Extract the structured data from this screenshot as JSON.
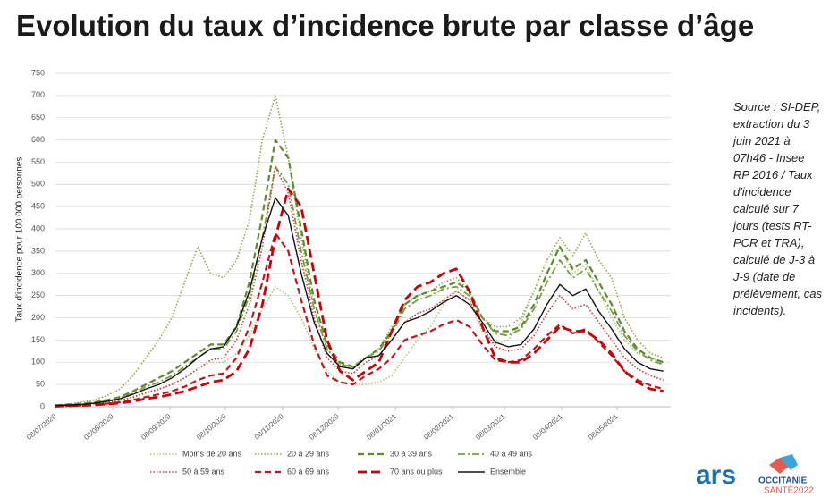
{
  "header": {
    "title": "Evolution du taux d’incidence brute par classe d’âge"
  },
  "note": "Source : SI-DEP, extraction du 3 juin 2021 à 07h46 - Insee RP 2016 / Taux d'incidence calculé sur 7 jours (tests RT-PCR et TRA), calculé de J-3 à J-9 (date de prélèvement, cas incidents).",
  "logos": {
    "ars": "ars",
    "region": "OCCITANIE",
    "plan": "SANTÉ2022"
  },
  "chart_data": {
    "type": "line",
    "y_label": "Taux d'incidence pour 100 000 personnes",
    "x": [
      "08/07/2020",
      "15/07/2020",
      "22/07/2020",
      "29/07/2020",
      "05/08/2020",
      "12/08/2020",
      "19/08/2020",
      "26/08/2020",
      "02/09/2020",
      "09/09/2020",
      "16/09/2020",
      "23/09/2020",
      "30/09/2020",
      "07/10/2020",
      "14/10/2020",
      "21/10/2020",
      "28/10/2020",
      "04/11/2020",
      "11/11/2020",
      "18/11/2020",
      "25/11/2020",
      "02/12/2020",
      "09/12/2020",
      "16/12/2020",
      "23/12/2020",
      "30/12/2020",
      "06/01/2021",
      "13/01/2021",
      "20/01/2021",
      "27/01/2021",
      "03/02/2021",
      "10/02/2021",
      "17/02/2021",
      "24/02/2021",
      "03/03/2021",
      "10/03/2021",
      "17/03/2021",
      "24/03/2021",
      "31/03/2021",
      "07/04/2021",
      "14/04/2021",
      "21/04/2021",
      "28/04/2021",
      "05/05/2021",
      "12/05/2021",
      "19/05/2021",
      "26/05/2021",
      "02/06/2021"
    ],
    "xlim": [
      "08/07/2020",
      "06/06/2021"
    ],
    "xticks": [
      "08/07/2020",
      "08/08/2020",
      "08/09/2020",
      "08/10/2020",
      "08/11/2020",
      "08/12/2020",
      "08/01/2021",
      "08/02/2021",
      "08/03/2021",
      "08/04/2021",
      "08/05/2021"
    ],
    "ylim": [
      0,
      750
    ],
    "yticks": [
      0,
      50,
      100,
      150,
      200,
      250,
      300,
      350,
      400,
      450,
      500,
      550,
      600,
      650,
      700,
      750
    ],
    "grid": true,
    "series": [
      {
        "name": "Moins de 20 ans",
        "color": "#a9c77a",
        "dash": "dotted",
        "width": 1.6,
        "values": [
          2,
          3,
          4,
          6,
          10,
          15,
          20,
          30,
          38,
          50,
          65,
          85,
          100,
          100,
          120,
          160,
          220,
          270,
          250,
          200,
          130,
          80,
          55,
          50,
          50,
          55,
          70,
          110,
          150,
          180,
          230,
          260,
          240,
          170,
          140,
          150,
          190,
          260,
          330,
          360,
          300,
          320,
          260,
          200,
          150,
          120,
          110,
          100
        ]
      },
      {
        "name": "20 à 29 ans",
        "color": "#8aa84a",
        "dash": "dotted",
        "width": 1.6,
        "values": [
          4,
          6,
          10,
          15,
          25,
          40,
          70,
          110,
          150,
          200,
          280,
          360,
          300,
          290,
          330,
          420,
          600,
          700,
          560,
          380,
          220,
          130,
          95,
          85,
          110,
          130,
          180,
          230,
          250,
          260,
          280,
          290,
          260,
          200,
          180,
          180,
          200,
          260,
          330,
          380,
          340,
          390,
          330,
          290,
          200,
          150,
          120,
          110
        ]
      },
      {
        "name": "30 à 39 ans",
        "color": "#5e8a2e",
        "dash": "dashed",
        "width": 2.2,
        "values": [
          3,
          5,
          7,
          10,
          15,
          22,
          35,
          50,
          65,
          80,
          100,
          120,
          140,
          140,
          180,
          280,
          430,
          600,
          560,
          400,
          240,
          140,
          100,
          90,
          110,
          130,
          170,
          230,
          250,
          260,
          270,
          280,
          260,
          200,
          170,
          170,
          180,
          230,
          300,
          360,
          310,
          330,
          280,
          230,
          170,
          130,
          110,
          100
        ]
      },
      {
        "name": "40 à 49 ans",
        "color": "#76a040",
        "dash": "dashdot",
        "width": 1.8,
        "values": [
          3,
          4,
          6,
          9,
          13,
          20,
          30,
          45,
          55,
          70,
          90,
          110,
          130,
          130,
          170,
          250,
          380,
          540,
          500,
          350,
          220,
          130,
          95,
          90,
          110,
          125,
          165,
          220,
          240,
          250,
          265,
          270,
          250,
          200,
          165,
          160,
          175,
          220,
          280,
          330,
          290,
          310,
          260,
          215,
          160,
          125,
          105,
          95
        ]
      },
      {
        "name": "50 à 59 ans",
        "color": "#d03a3a",
        "dash": "dotted",
        "width": 1.6,
        "values": [
          2,
          3,
          5,
          7,
          10,
          14,
          22,
          32,
          40,
          50,
          65,
          85,
          105,
          110,
          150,
          230,
          360,
          540,
          480,
          330,
          200,
          110,
          80,
          75,
          100,
          115,
          150,
          190,
          210,
          220,
          240,
          260,
          240,
          180,
          135,
          125,
          130,
          160,
          210,
          250,
          220,
          230,
          190,
          150,
          110,
          85,
          70,
          60
        ]
      },
      {
        "name": "60 à 69 ans",
        "color": "#c0171c",
        "dash": "dashed",
        "width": 2.2,
        "values": [
          1,
          2,
          3,
          5,
          7,
          10,
          15,
          22,
          28,
          35,
          45,
          60,
          70,
          75,
          110,
          180,
          280,
          390,
          350,
          240,
          140,
          70,
          55,
          50,
          70,
          85,
          110,
          150,
          160,
          170,
          185,
          195,
          180,
          140,
          105,
          100,
          105,
          130,
          160,
          185,
          165,
          175,
          145,
          115,
          80,
          60,
          48,
          40
        ]
      },
      {
        "name": "70 ans ou plus",
        "color": "#c8000a",
        "dash": "longdash",
        "width": 2.8,
        "values": [
          1,
          2,
          3,
          4,
          6,
          8,
          12,
          18,
          22,
          28,
          35,
          45,
          55,
          60,
          80,
          130,
          230,
          380,
          490,
          450,
          300,
          150,
          80,
          60,
          80,
          100,
          170,
          240,
          270,
          280,
          300,
          310,
          260,
          180,
          110,
          100,
          100,
          120,
          150,
          180,
          170,
          170,
          150,
          120,
          80,
          55,
          40,
          35
        ]
      },
      {
        "name": "Ensemble",
        "color": "#111111",
        "dash": "solid",
        "width": 1.4,
        "values": [
          3,
          4,
          5,
          8,
          12,
          18,
          28,
          40,
          50,
          65,
          85,
          110,
          130,
          135,
          180,
          260,
          380,
          470,
          430,
          300,
          190,
          120,
          90,
          85,
          110,
          115,
          150,
          190,
          200,
          215,
          235,
          250,
          230,
          190,
          145,
          135,
          140,
          175,
          230,
          275,
          250,
          265,
          215,
          175,
          130,
          100,
          85,
          80
        ]
      }
    ]
  }
}
